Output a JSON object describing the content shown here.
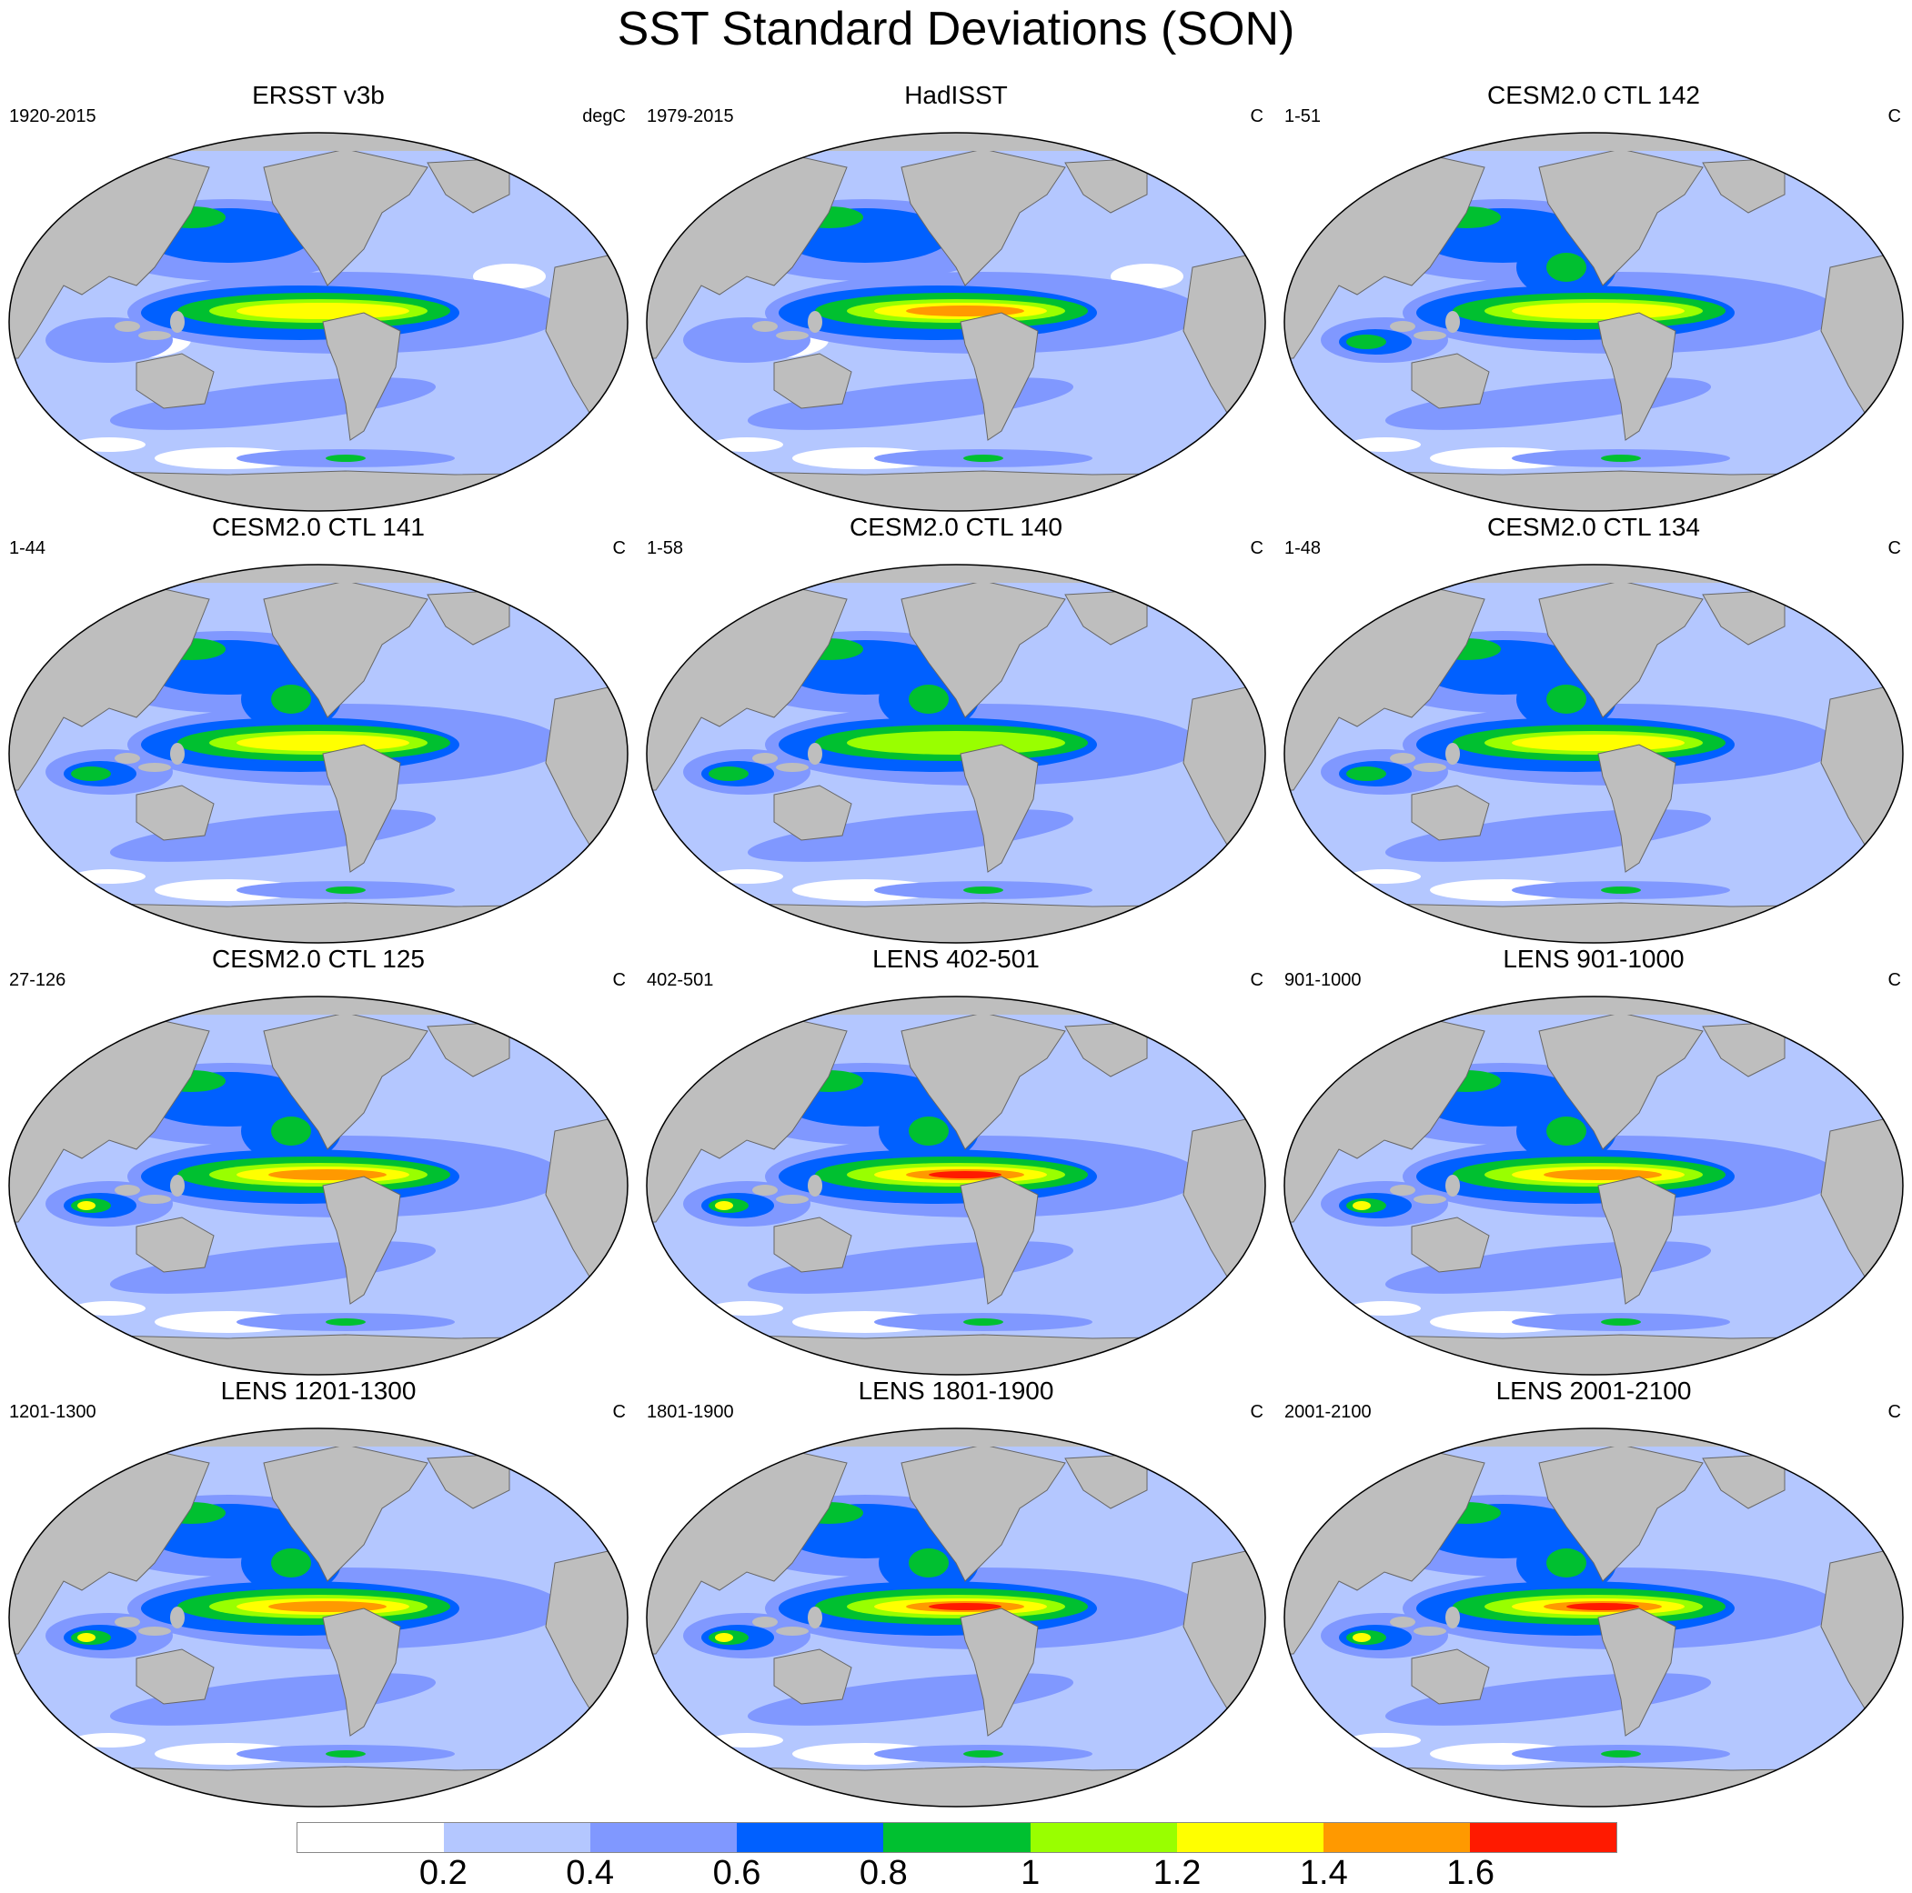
{
  "figure": {
    "title": "SST Standard Deviations (SON)"
  },
  "panels": [
    {
      "title": "ERSST v3b",
      "left": "1920-2015",
      "right": "degC",
      "tropic": 2,
      "obs": true
    },
    {
      "title": "HadISST",
      "left": "1979-2015",
      "right": "C",
      "tropic": 3,
      "obs": true
    },
    {
      "title": "CESM2.0 CTL 142",
      "left": "1-51",
      "right": "C",
      "tropic": 2,
      "obs": false
    },
    {
      "title": "CESM2.0 CTL 141",
      "left": "1-44",
      "right": "C",
      "tropic": 2,
      "obs": false
    },
    {
      "title": "CESM2.0 CTL 140",
      "left": "1-58",
      "right": "C",
      "tropic": 1,
      "obs": false
    },
    {
      "title": "CESM2.0 CTL 134",
      "left": "1-48",
      "right": "C",
      "tropic": 2,
      "obs": false
    },
    {
      "title": "CESM2.0 CTL 125",
      "left": "27-126",
      "right": "C",
      "tropic": 3,
      "obs": false
    },
    {
      "title": "LENS 402-501",
      "left": "402-501",
      "right": "C",
      "tropic": 4,
      "obs": false
    },
    {
      "title": "LENS 901-1000",
      "left": "901-1000",
      "right": "C",
      "tropic": 3,
      "obs": false
    },
    {
      "title": "LENS 1201-1300",
      "left": "1201-1300",
      "right": "C",
      "tropic": 3,
      "obs": false
    },
    {
      "title": "LENS 1801-1900",
      "left": "1801-1900",
      "right": "C",
      "tropic": 4,
      "obs": false
    },
    {
      "title": "LENS 2001-2100",
      "left": "2001-2100",
      "right": "C",
      "tropic": 4,
      "obs": false
    }
  ],
  "colorbar": {
    "colors": [
      "#ffffff",
      "#b4c7ff",
      "#8098ff",
      "#0060ff",
      "#00c030",
      "#99ff00",
      "#ffff00",
      "#ff9900",
      "#ff1a00"
    ],
    "labels": [
      "0.2",
      "0.4",
      "0.6",
      "0.8",
      "1",
      "1.2",
      "1.4",
      "1.6"
    ]
  },
  "land_color": "#bebebe"
}
